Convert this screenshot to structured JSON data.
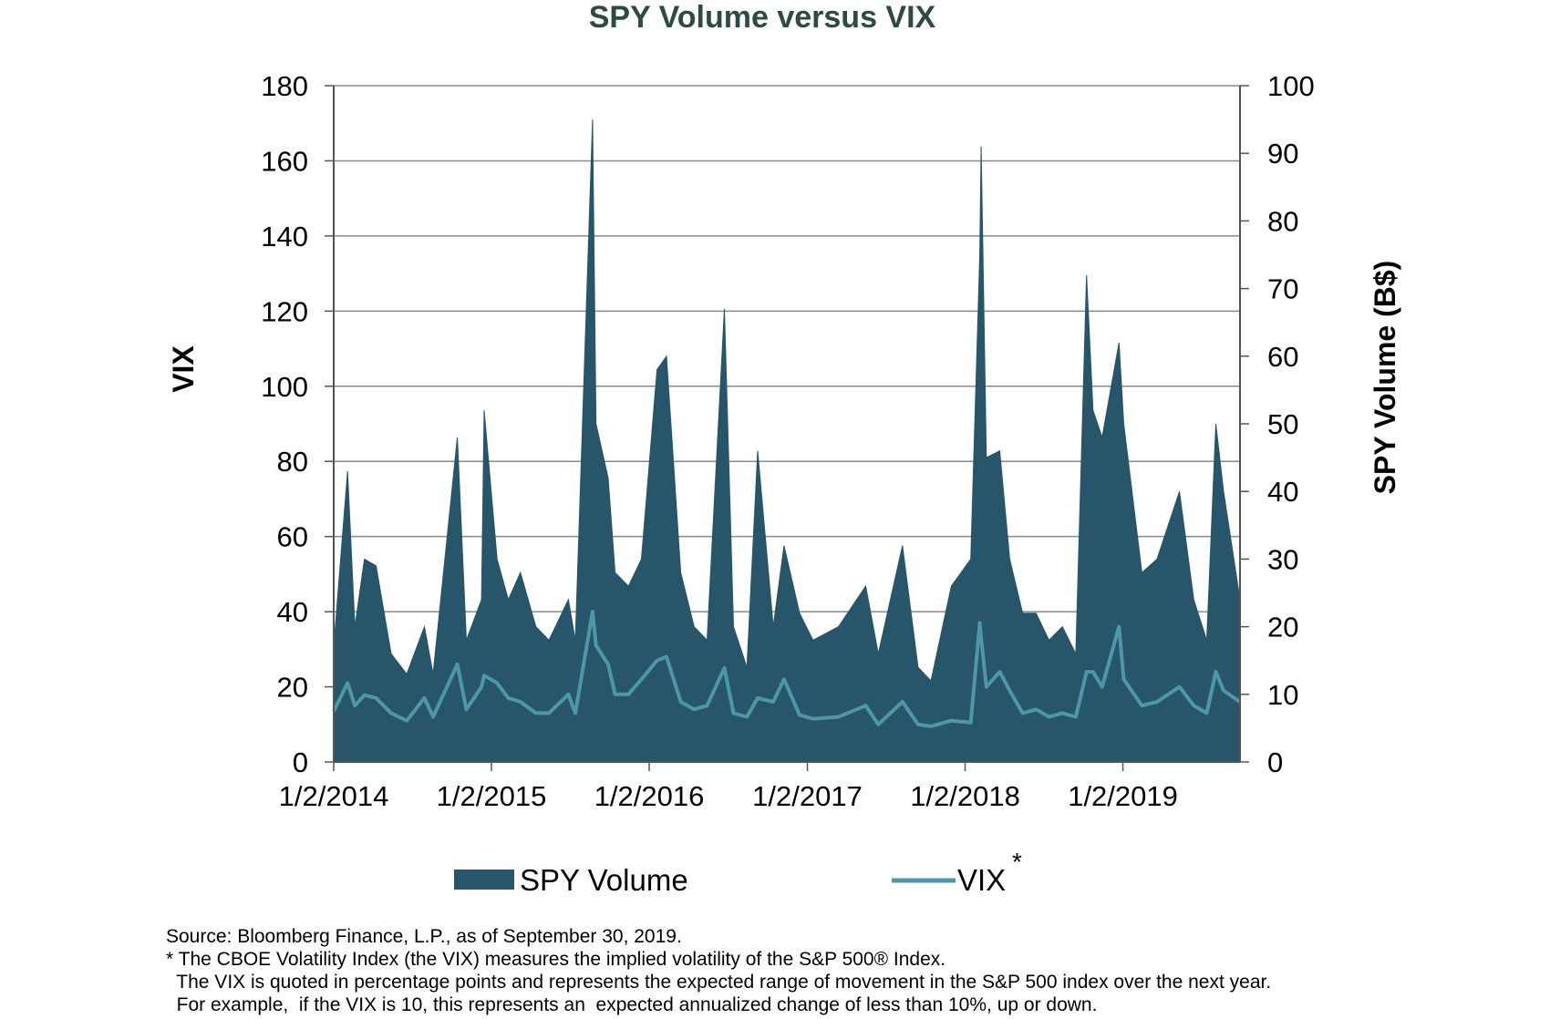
{
  "chart_data": {
    "type": "area",
    "title": "SPY Volume versus VIX",
    "y_left_label": "VIX",
    "y_right_label": "SPY Volume (B$)",
    "y_left_range": [
      0,
      180
    ],
    "y_right_range": [
      0,
      100
    ],
    "y_left_ticks": [
      "0",
      "20",
      "40",
      "60",
      "80",
      "100",
      "120",
      "140",
      "160",
      "180"
    ],
    "y_right_ticks": [
      "0",
      "10",
      "20",
      "30",
      "40",
      "50",
      "60",
      "70",
      "80",
      "90",
      "100"
    ],
    "x_range": [
      "2014-01-02",
      "2019-09-30"
    ],
    "x_tick_labels": [
      "1/2/2014",
      "1/2/2015",
      "1/2/2016",
      "1/2/2017",
      "1/2/2018",
      "1/2/2019"
    ],
    "x_tick_dates": [
      "2014-01-02",
      "2015-01-02",
      "2016-01-02",
      "2017-01-02",
      "2018-01-02",
      "2019-01-02"
    ],
    "grid": true,
    "legend_position": "bottom",
    "series": [
      {
        "name": "SPY Volume",
        "axis": "right",
        "kind": "area",
        "color": "#27556a",
        "points": [
          [
            "2014-01-02",
            17
          ],
          [
            "2014-02-03",
            43
          ],
          [
            "2014-02-20",
            20
          ],
          [
            "2014-03-14",
            30
          ],
          [
            "2014-04-10",
            29
          ],
          [
            "2014-05-15",
            16
          ],
          [
            "2014-06-20",
            13
          ],
          [
            "2014-07-31",
            20
          ],
          [
            "2014-08-20",
            13
          ],
          [
            "2014-10-15",
            48
          ],
          [
            "2014-11-05",
            18
          ],
          [
            "2014-12-10",
            24
          ],
          [
            "2014-12-16",
            52
          ],
          [
            "2015-01-15",
            30
          ],
          [
            "2015-02-10",
            24
          ],
          [
            "2015-03-10",
            28
          ],
          [
            "2015-04-15",
            20
          ],
          [
            "2015-05-15",
            18
          ],
          [
            "2015-06-29",
            24
          ],
          [
            "2015-07-15",
            18
          ],
          [
            "2015-08-24",
            95
          ],
          [
            "2015-09-01",
            50
          ],
          [
            "2015-09-29",
            42
          ],
          [
            "2015-10-15",
            28
          ],
          [
            "2015-11-15",
            26
          ],
          [
            "2015-12-15",
            30
          ],
          [
            "2016-01-20",
            58
          ],
          [
            "2016-02-11",
            60
          ],
          [
            "2016-03-15",
            28
          ],
          [
            "2016-04-15",
            20
          ],
          [
            "2016-05-15",
            18
          ],
          [
            "2016-06-24",
            67
          ],
          [
            "2016-07-15",
            20
          ],
          [
            "2016-08-15",
            14
          ],
          [
            "2016-09-09",
            46
          ],
          [
            "2016-10-15",
            20
          ],
          [
            "2016-11-09",
            32
          ],
          [
            "2016-12-15",
            22
          ],
          [
            "2017-01-15",
            18
          ],
          [
            "2017-03-15",
            20
          ],
          [
            "2017-05-17",
            26
          ],
          [
            "2017-06-15",
            16
          ],
          [
            "2017-08-10",
            32
          ],
          [
            "2017-09-15",
            14
          ],
          [
            "2017-10-15",
            12
          ],
          [
            "2017-12-01",
            26
          ],
          [
            "2018-01-15",
            30
          ],
          [
            "2018-02-05",
            75
          ],
          [
            "2018-02-08",
            91
          ],
          [
            "2018-02-20",
            45
          ],
          [
            "2018-03-23",
            46
          ],
          [
            "2018-04-15",
            30
          ],
          [
            "2018-05-15",
            22
          ],
          [
            "2018-06-15",
            22
          ],
          [
            "2018-07-15",
            18
          ],
          [
            "2018-08-15",
            20
          ],
          [
            "2018-09-15",
            16
          ],
          [
            "2018-10-10",
            72
          ],
          [
            "2018-10-25",
            52
          ],
          [
            "2018-11-15",
            48
          ],
          [
            "2018-12-24",
            62
          ],
          [
            "2019-01-04",
            50
          ],
          [
            "2019-02-15",
            28
          ],
          [
            "2019-03-22",
            30
          ],
          [
            "2019-05-13",
            40
          ],
          [
            "2019-06-15",
            24
          ],
          [
            "2019-07-15",
            18
          ],
          [
            "2019-08-05",
            50
          ],
          [
            "2019-08-23",
            40
          ],
          [
            "2019-09-30",
            24
          ]
        ]
      },
      {
        "name": "VIX",
        "axis": "left",
        "kind": "line",
        "color": "#4e97a8",
        "points": [
          [
            "2014-01-02",
            13.5
          ],
          [
            "2014-02-03",
            21
          ],
          [
            "2014-02-20",
            15
          ],
          [
            "2014-03-14",
            17.8
          ],
          [
            "2014-04-10",
            17
          ],
          [
            "2014-05-15",
            13
          ],
          [
            "2014-06-20",
            11
          ],
          [
            "2014-07-31",
            17
          ],
          [
            "2014-08-20",
            12
          ],
          [
            "2014-10-15",
            26
          ],
          [
            "2014-11-05",
            14
          ],
          [
            "2014-12-10",
            20
          ],
          [
            "2014-12-16",
            23
          ],
          [
            "2015-01-15",
            21
          ],
          [
            "2015-02-10",
            17
          ],
          [
            "2015-03-10",
            16
          ],
          [
            "2015-04-15",
            13
          ],
          [
            "2015-05-15",
            13
          ],
          [
            "2015-06-29",
            18
          ],
          [
            "2015-07-15",
            13
          ],
          [
            "2015-08-24",
            40
          ],
          [
            "2015-09-01",
            31
          ],
          [
            "2015-09-29",
            26
          ],
          [
            "2015-10-15",
            18
          ],
          [
            "2015-11-15",
            18
          ],
          [
            "2015-12-15",
            22
          ],
          [
            "2016-01-20",
            27
          ],
          [
            "2016-02-11",
            28
          ],
          [
            "2016-03-15",
            16
          ],
          [
            "2016-04-15",
            14
          ],
          [
            "2016-05-15",
            15
          ],
          [
            "2016-06-24",
            25
          ],
          [
            "2016-07-15",
            13
          ],
          [
            "2016-08-15",
            12
          ],
          [
            "2016-09-09",
            17
          ],
          [
            "2016-10-15",
            16
          ],
          [
            "2016-11-09",
            22
          ],
          [
            "2016-12-15",
            12.5
          ],
          [
            "2017-01-15",
            11.5
          ],
          [
            "2017-03-15",
            12
          ],
          [
            "2017-05-17",
            15
          ],
          [
            "2017-06-15",
            10
          ],
          [
            "2017-08-10",
            16
          ],
          [
            "2017-09-15",
            10
          ],
          [
            "2017-10-15",
            9.5
          ],
          [
            "2017-12-01",
            11
          ],
          [
            "2018-01-15",
            10.5
          ],
          [
            "2018-02-05",
            37
          ],
          [
            "2018-02-08",
            33
          ],
          [
            "2018-02-20",
            20
          ],
          [
            "2018-03-23",
            24
          ],
          [
            "2018-04-15",
            19
          ],
          [
            "2018-05-15",
            13
          ],
          [
            "2018-06-15",
            14
          ],
          [
            "2018-07-15",
            12
          ],
          [
            "2018-08-15",
            13
          ],
          [
            "2018-09-15",
            12
          ],
          [
            "2018-10-10",
            24
          ],
          [
            "2018-10-25",
            24
          ],
          [
            "2018-11-15",
            20
          ],
          [
            "2018-12-24",
            36
          ],
          [
            "2019-01-04",
            22
          ],
          [
            "2019-02-15",
            15
          ],
          [
            "2019-03-22",
            16
          ],
          [
            "2019-05-13",
            20
          ],
          [
            "2019-06-15",
            15
          ],
          [
            "2019-07-15",
            13
          ],
          [
            "2019-08-05",
            24
          ],
          [
            "2019-08-23",
            19
          ],
          [
            "2019-09-30",
            16
          ]
        ]
      }
    ],
    "legend": [
      {
        "label": "SPY Volume",
        "marker": "box",
        "color": "#27556a"
      },
      {
        "label": "VIX",
        "superscript": "*",
        "marker": "line",
        "color": "#4e97a8"
      }
    ]
  },
  "footnotes": {
    "source": "Source: Bloomberg Finance, L.P., as of September 30, 2019.",
    "note1": "* The CBOE Volatility Index (the VIX) measures the implied volatility of the S&P 500® Index.",
    "note2": "  The VIX is quoted in percentage points and represents the expected range of movement in the S&P 500 index over the next year.",
    "note3": "  For example,  if the VIX is 10, this represents an  expected annualized change of less than 10%, up or down."
  }
}
